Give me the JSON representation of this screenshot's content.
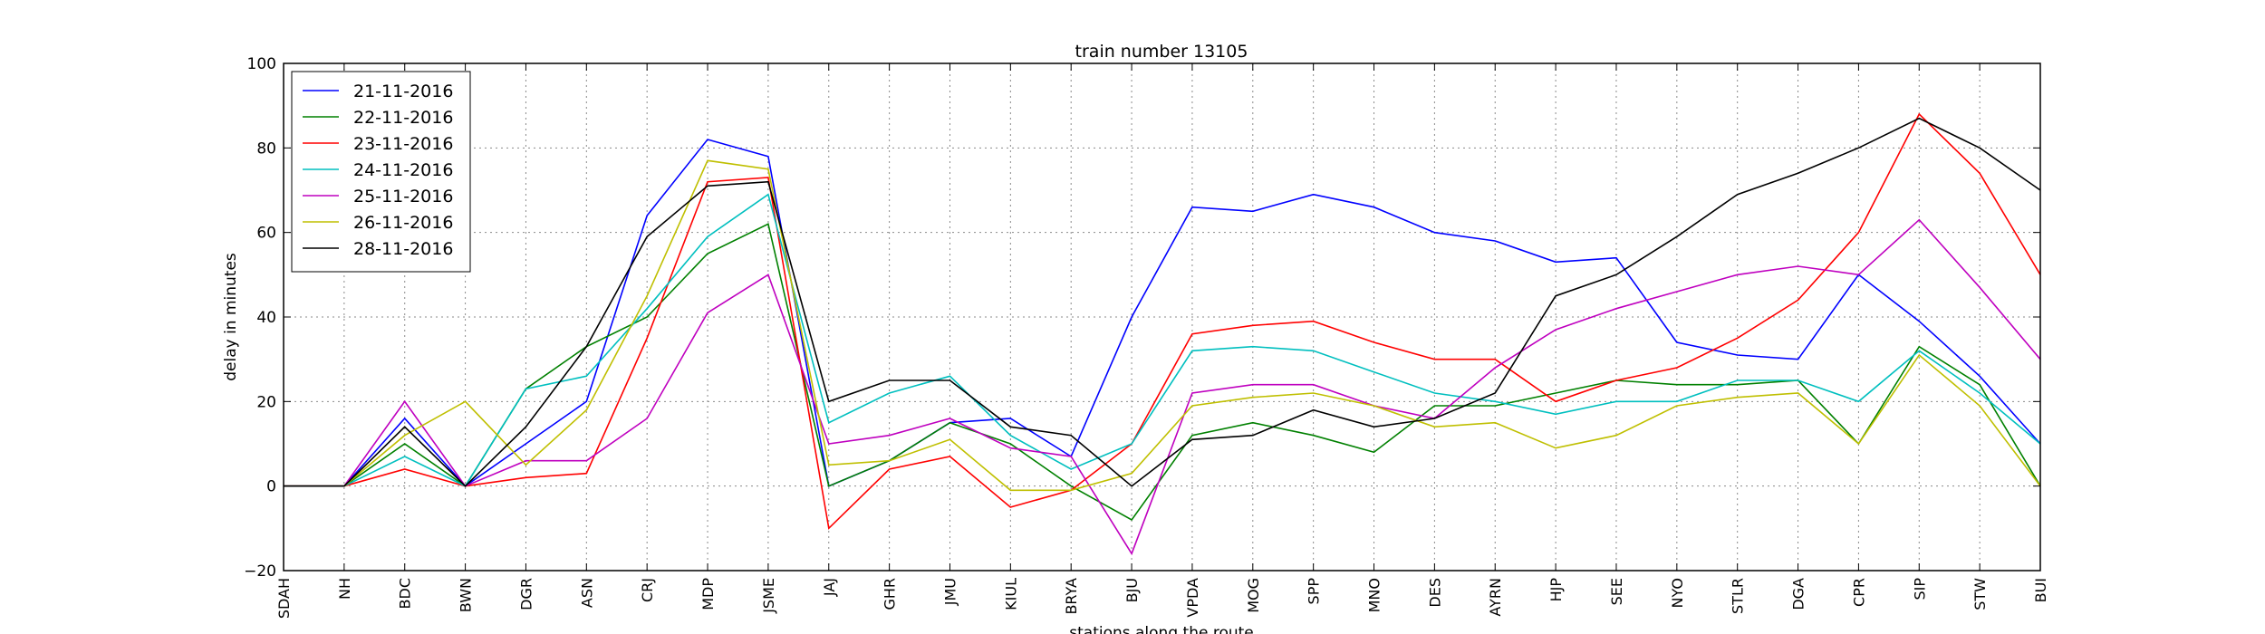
{
  "chart_data": {
    "type": "line",
    "title": "train number 13105",
    "xlabel": "stations along the route",
    "ylabel": "delay in minutes",
    "ylim": [
      -20,
      100
    ],
    "yticks": [
      -20,
      0,
      20,
      40,
      60,
      80,
      100
    ],
    "grid": true,
    "legend_position": "top-left",
    "categories": [
      "SDAH",
      "NH",
      "BDC",
      "BWN",
      "DGR",
      "ASN",
      "CRJ",
      "MDP",
      "JSME",
      "JAJ",
      "GHR",
      "JMU",
      "KIUL",
      "BRYA",
      "BJU",
      "VPDA",
      "MOG",
      "SPP",
      "MNO",
      "DES",
      "AYRN",
      "HJP",
      "SEE",
      "NYO",
      "STLR",
      "DGA",
      "CPR",
      "SIP",
      "STW",
      "BUI"
    ],
    "series": [
      {
        "name": "21-11-2016",
        "color": "#0000ff",
        "values": [
          0,
          0,
          16,
          0,
          10,
          20,
          64,
          82,
          78,
          0,
          6,
          15,
          16,
          7,
          40,
          66,
          65,
          69,
          66,
          60,
          58,
          53,
          54,
          34,
          31,
          30,
          50,
          39,
          26,
          10
        ]
      },
      {
        "name": "22-11-2016",
        "color": "#008000",
        "values": [
          0,
          0,
          10,
          0,
          23,
          33,
          40,
          55,
          62,
          0,
          6,
          15,
          10,
          0,
          -8,
          12,
          15,
          12,
          8,
          19,
          19,
          22,
          25,
          24,
          24,
          25,
          10,
          33,
          24,
          0
        ]
      },
      {
        "name": "23-11-2016",
        "color": "#ff0000",
        "values": [
          0,
          0,
          4,
          0,
          2,
          3,
          35,
          72,
          73,
          -10,
          4,
          7,
          -5,
          -1,
          10,
          36,
          38,
          39,
          34,
          30,
          30,
          20,
          25,
          28,
          35,
          44,
          60,
          88,
          74,
          50
        ]
      },
      {
        "name": "24-11-2016",
        "color": "#00bfbf",
        "values": [
          0,
          0,
          7,
          0,
          23,
          26,
          42,
          59,
          69,
          15,
          22,
          26,
          12,
          4,
          10,
          32,
          33,
          32,
          27,
          22,
          20,
          17,
          20,
          20,
          25,
          25,
          20,
          32,
          22,
          10
        ]
      },
      {
        "name": "25-11-2016",
        "color": "#bf00bf",
        "values": [
          0,
          0,
          20,
          0,
          6,
          6,
          16,
          41,
          50,
          10,
          12,
          16,
          9,
          7,
          -16,
          22,
          24,
          24,
          19,
          16,
          28,
          37,
          42,
          46,
          50,
          52,
          50,
          63,
          47,
          30
        ]
      },
      {
        "name": "26-11-2016",
        "color": "#bfbf00",
        "values": [
          0,
          0,
          12,
          20,
          5,
          18,
          45,
          77,
          75,
          5,
          6,
          11,
          -1,
          -1,
          3,
          19,
          21,
          22,
          19,
          14,
          15,
          9,
          12,
          19,
          21,
          22,
          10,
          31,
          19,
          0
        ]
      },
      {
        "name": "28-11-2016",
        "color": "#000000",
        "values": [
          0,
          0,
          14,
          0,
          14,
          33,
          59,
          71,
          72,
          20,
          25,
          25,
          14,
          12,
          0,
          11,
          12,
          18,
          14,
          16,
          22,
          45,
          50,
          59,
          69,
          74,
          80,
          87,
          80,
          70
        ]
      }
    ]
  }
}
